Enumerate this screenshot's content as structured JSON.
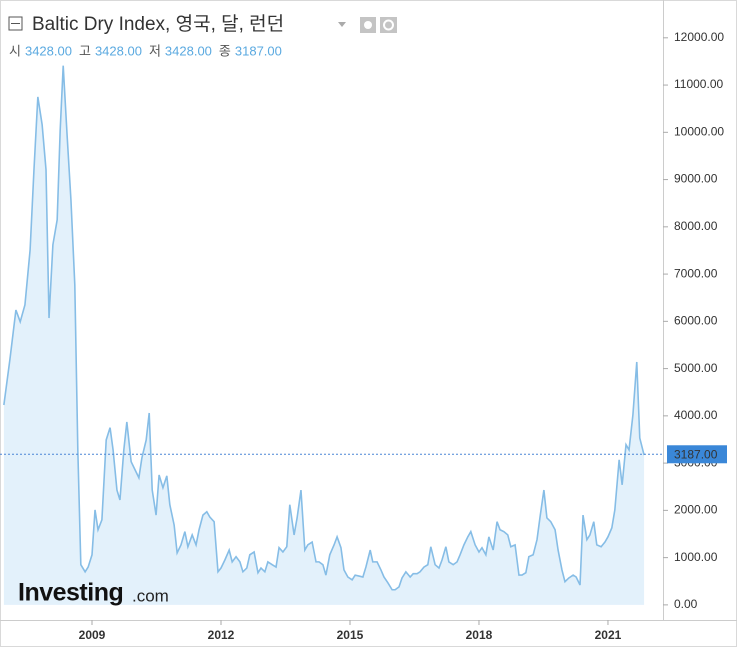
{
  "chart_data": {
    "type": "area",
    "title": "Baltic Dry Index, 영국, 달, 런던",
    "stats": [
      {
        "label": "시",
        "value": "3428.00"
      },
      {
        "label": "고",
        "value": "3428.00"
      },
      {
        "label": "저",
        "value": "3428.00"
      },
      {
        "label": "종",
        "value": "3187.00"
      }
    ],
    "last_value": 3187,
    "last_value_label": "3187.00",
    "watermark": [
      "Investing",
      ".com"
    ],
    "color": "#86bde6",
    "fill": "#e3f1fb",
    "xlim": [
      2006.86,
      2022.28
    ],
    "ylim": [
      -320,
      12800
    ],
    "xticks": [
      2009,
      2012,
      2015,
      2018,
      2021
    ],
    "yticks": [
      {
        "value": 0,
        "label": "0.00"
      },
      {
        "value": 1000,
        "label": "1000.00"
      },
      {
        "value": 2000,
        "label": "2000.00"
      },
      {
        "value": 3000,
        "label": "3000.00"
      },
      {
        "value": 4000,
        "label": "4000.00"
      },
      {
        "value": 5000,
        "label": "5000.00"
      },
      {
        "value": 6000,
        "label": "6000.00"
      },
      {
        "value": 7000,
        "label": "7000.00"
      },
      {
        "value": 8000,
        "label": "8000.00"
      },
      {
        "value": 9000,
        "label": "9000.00"
      },
      {
        "value": 10000,
        "label": "10000.00"
      },
      {
        "value": 11000,
        "label": "11000.00"
      },
      {
        "value": 12000,
        "label": "12000.00"
      }
    ],
    "x": [
      2006.95,
      2007.09,
      2007.23,
      2007.33,
      2007.44,
      2007.56,
      2007.65,
      2007.74,
      2007.84,
      2007.93,
      2008.0,
      2008.09,
      2008.19,
      2008.26,
      2008.33,
      2008.42,
      2008.51,
      2008.6,
      2008.67,
      2008.74,
      2008.84,
      2008.91,
      2009.0,
      2009.07,
      2009.14,
      2009.23,
      2009.33,
      2009.42,
      2009.49,
      2009.58,
      2009.65,
      2009.74,
      2009.81,
      2009.91,
      2010.0,
      2010.09,
      2010.16,
      2010.26,
      2010.33,
      2010.4,
      2010.49,
      2010.56,
      2010.65,
      2010.74,
      2010.81,
      2010.91,
      2010.98,
      2011.07,
      2011.16,
      2011.23,
      2011.33,
      2011.42,
      2011.49,
      2011.58,
      2011.67,
      2011.74,
      2011.84,
      2011.93,
      2012.0,
      2012.09,
      2012.19,
      2012.26,
      2012.35,
      2012.44,
      2012.51,
      2012.6,
      2012.67,
      2012.77,
      2012.86,
      2012.93,
      2013.02,
      2013.09,
      2013.19,
      2013.28,
      2013.35,
      2013.44,
      2013.53,
      2013.6,
      2013.7,
      2013.77,
      2013.86,
      2013.95,
      2014.02,
      2014.12,
      2014.21,
      2014.28,
      2014.37,
      2014.44,
      2014.53,
      2014.63,
      2014.7,
      2014.79,
      2014.86,
      2014.95,
      2015.05,
      2015.12,
      2015.21,
      2015.3,
      2015.37,
      2015.47,
      2015.53,
      2015.63,
      2015.72,
      2015.79,
      2015.88,
      2015.98,
      2016.05,
      2016.14,
      2016.21,
      2016.3,
      2016.4,
      2016.47,
      2016.56,
      2016.63,
      2016.72,
      2016.81,
      2016.88,
      2016.98,
      2017.07,
      2017.14,
      2017.23,
      2017.3,
      2017.4,
      2017.49,
      2017.56,
      2017.65,
      2017.74,
      2017.81,
      2017.91,
      2018.0,
      2018.07,
      2018.16,
      2018.23,
      2018.33,
      2018.42,
      2018.49,
      2018.58,
      2018.67,
      2018.74,
      2018.84,
      2018.93,
      2019.0,
      2019.09,
      2019.16,
      2019.26,
      2019.35,
      2019.42,
      2019.51,
      2019.58,
      2019.67,
      2019.77,
      2019.84,
      2019.93,
      2020.0,
      2020.09,
      2020.19,
      2020.26,
      2020.35,
      2020.42,
      2020.51,
      2020.58,
      2020.67,
      2020.74,
      2020.84,
      2020.93,
      2021.0,
      2021.09,
      2021.16,
      2021.26,
      2021.33,
      2021.42,
      2021.49,
      2021.58,
      2021.67,
      2021.74,
      2021.84
    ],
    "values": [
      4230,
      5190,
      6240,
      5990,
      6350,
      7510,
      9210,
      10750,
      10160,
      9210,
      6070,
      7620,
      8150,
      10050,
      11410,
      9950,
      8570,
      6770,
      3280,
      850,
      700,
      800,
      1060,
      2010,
      1590,
      1800,
      3490,
      3750,
      3280,
      2430,
      2220,
      3280,
      3870,
      3030,
      2860,
      2690,
      3110,
      3490,
      4060,
      2430,
      1900,
      2750,
      2480,
      2730,
      2120,
      1690,
      1100,
      1270,
      1550,
      1230,
      1480,
      1270,
      1590,
      1900,
      1970,
      1860,
      1760,
      700,
      780,
      950,
      1160,
      910,
      1020,
      910,
      700,
      780,
      1060,
      1120,
      680,
      780,
      700,
      910,
      850,
      800,
      1210,
      1120,
      1230,
      2120,
      1480,
      1840,
      2430,
      1160,
      1270,
      1330,
      910,
      910,
      850,
      630,
      1060,
      1270,
      1440,
      1210,
      740,
      590,
      530,
      630,
      610,
      590,
      800,
      1160,
      910,
      910,
      740,
      590,
      470,
      320,
      320,
      380,
      570,
      700,
      590,
      660,
      660,
      700,
      800,
      850,
      1230,
      850,
      780,
      950,
      1230,
      910,
      850,
      910,
      1060,
      1270,
      1440,
      1550,
      1270,
      1120,
      1210,
      1060,
      1440,
      1160,
      1760,
      1590,
      1550,
      1480,
      1230,
      1270,
      630,
      630,
      680,
      1020,
      1060,
      1380,
      1860,
      2430,
      1840,
      1760,
      1590,
      1160,
      740,
      490,
      570,
      630,
      590,
      420,
      1900,
      1380,
      1480,
      1760,
      1270,
      1230,
      1330,
      1440,
      1630,
      2010,
      3070,
      2540,
      3390,
      3280,
      4020,
      5140,
      3530,
      3170
    ]
  }
}
